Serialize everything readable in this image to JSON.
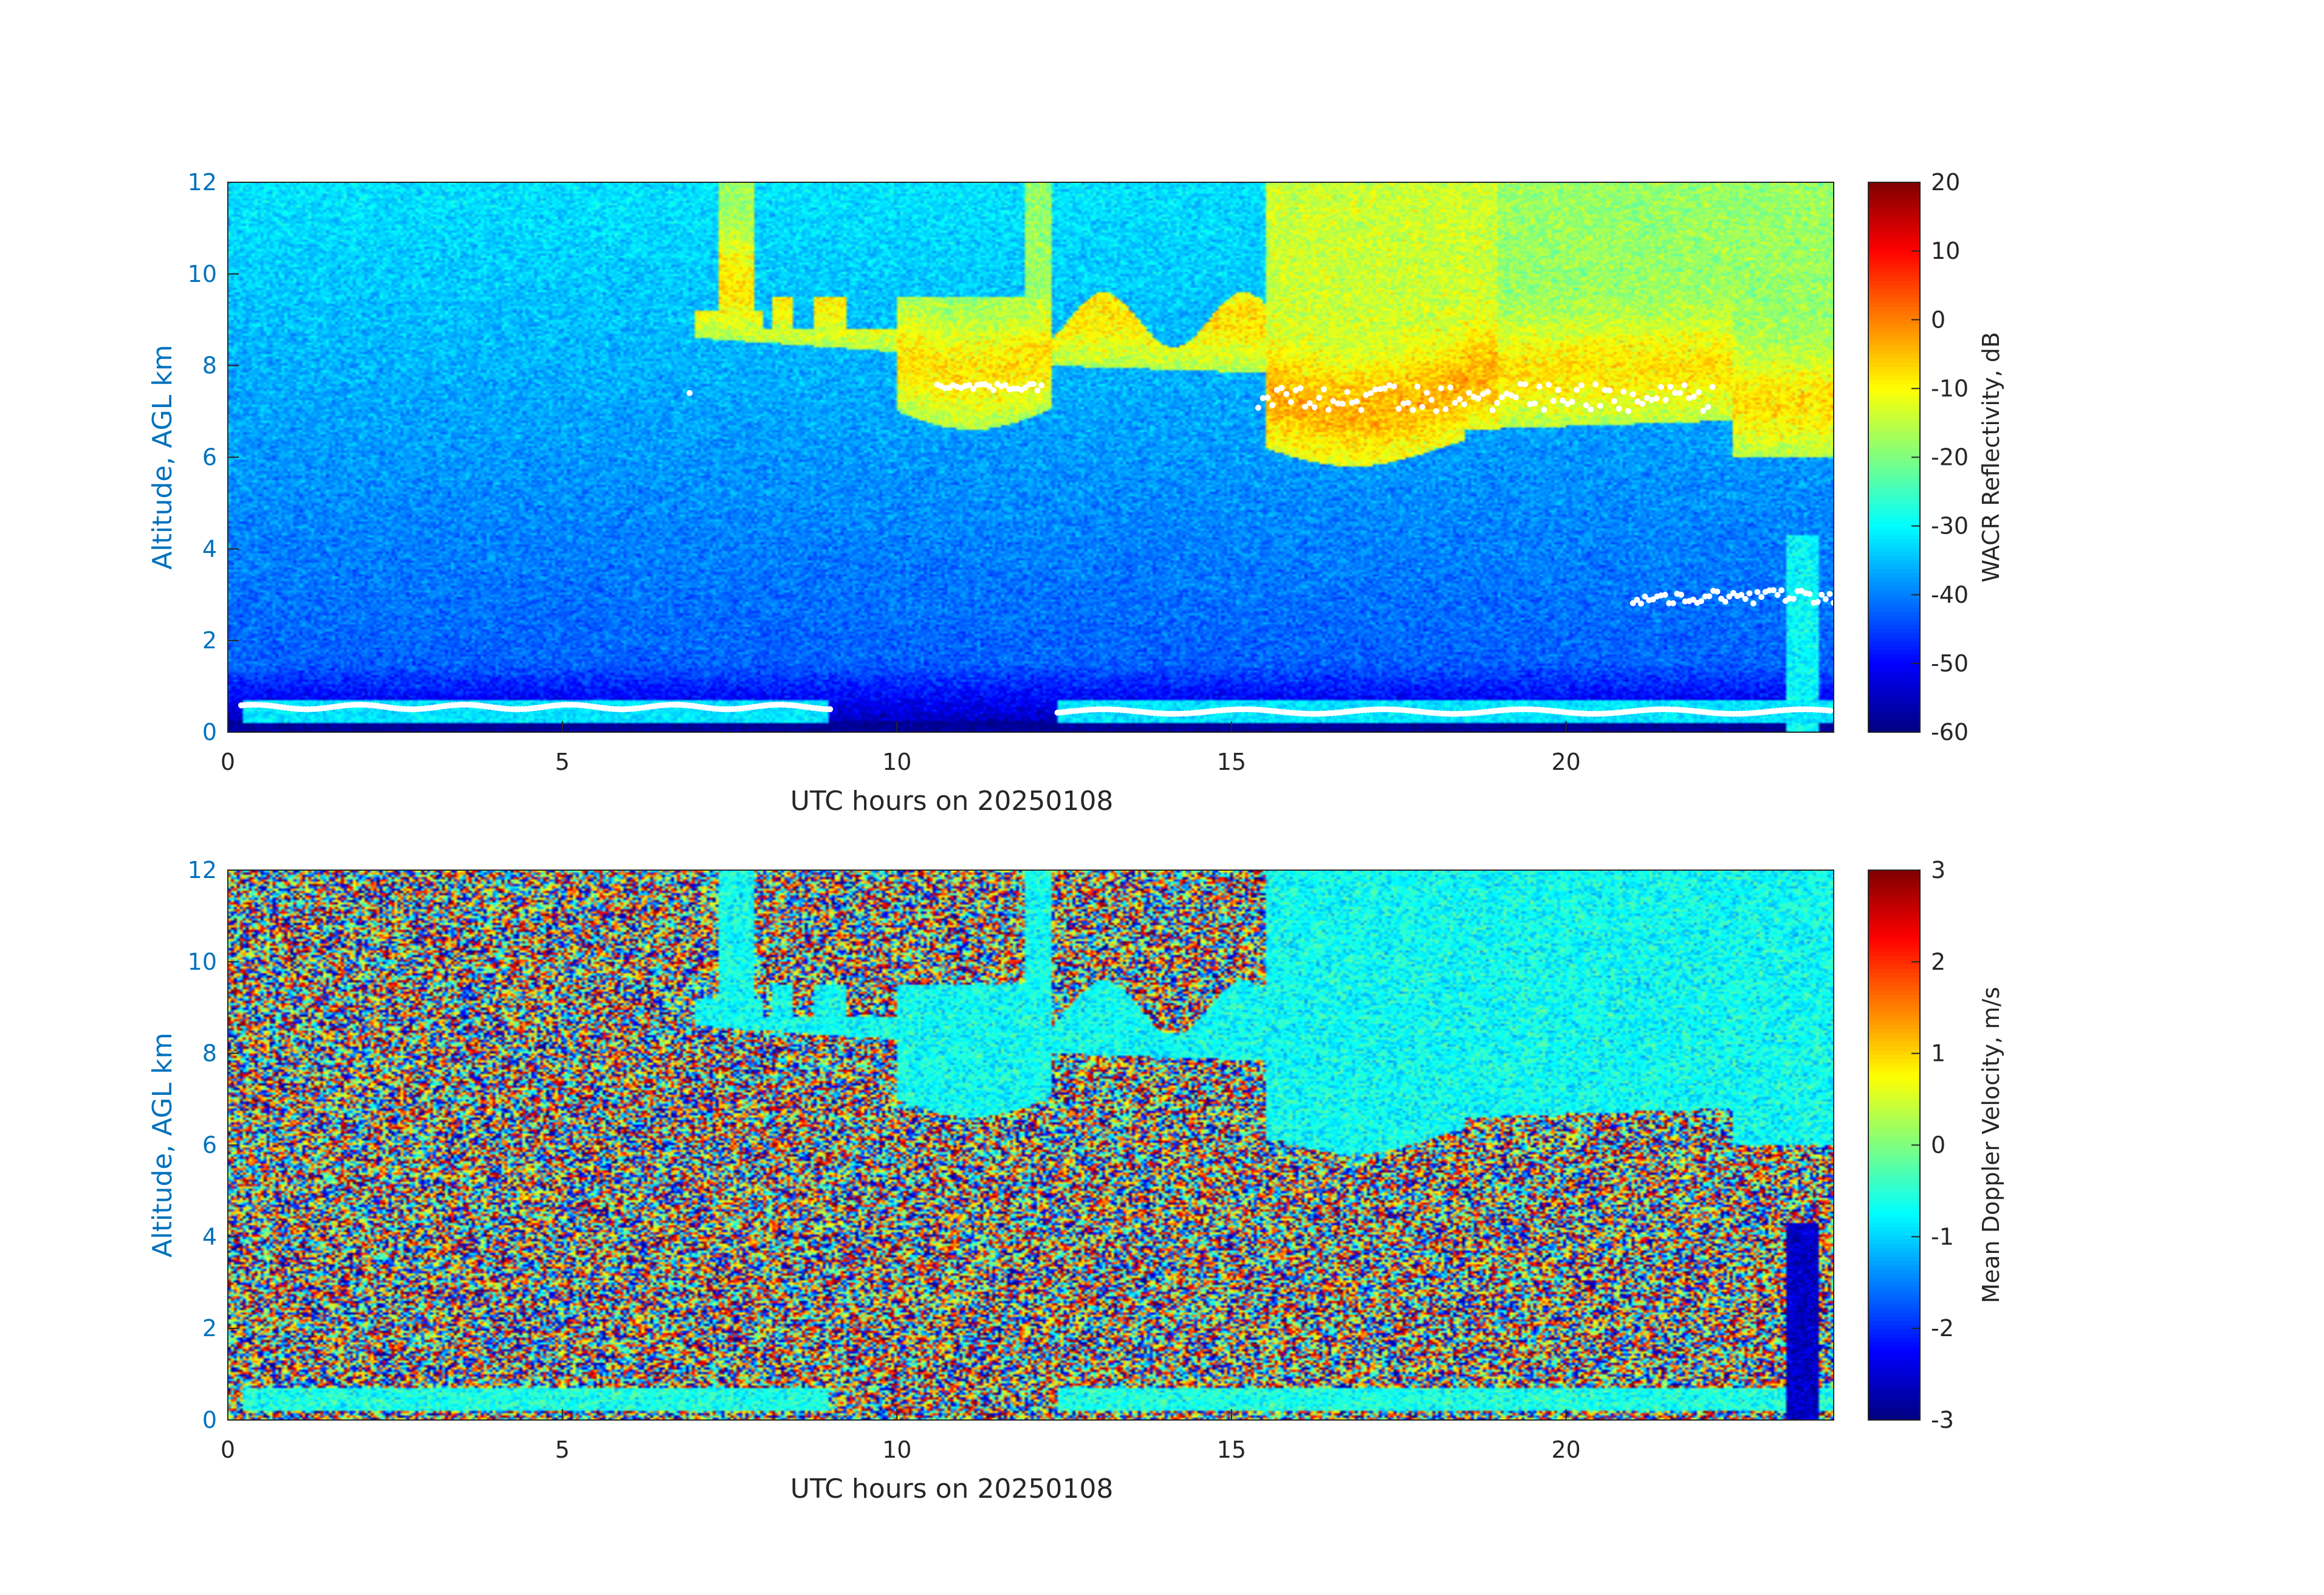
{
  "chart_data": [
    {
      "type": "heatmap",
      "field": "reflectivity",
      "xlabel": "UTC hours on 20250108",
      "ylabel": "Altitude, AGL km",
      "xlim": [
        0,
        24
      ],
      "ylim": [
        0,
        12
      ],
      "xticks": [
        0,
        5,
        10,
        15,
        20
      ],
      "yticks": [
        0,
        2,
        4,
        6,
        8,
        10,
        12
      ],
      "colorbar": {
        "label": "WACR Reflectivity, dB",
        "range": [
          -60,
          20
        ],
        "ticks": [
          20,
          10,
          0,
          -10,
          -20,
          -30,
          -40,
          -50,
          -60
        ],
        "colormap": "jet"
      },
      "marker_color": "#ffffff",
      "axis_label_color": "#0072bd"
    },
    {
      "type": "heatmap",
      "field": "velocity",
      "xlabel": "UTC hours on 20250108",
      "ylabel": "Altitude, AGL km",
      "xlim": [
        0,
        24
      ],
      "ylim": [
        0,
        12
      ],
      "xticks": [
        0,
        5,
        10,
        15,
        20
      ],
      "yticks": [
        0,
        2,
        4,
        6,
        8,
        10,
        12
      ],
      "colorbar": {
        "label": "Mean Doppler Velocity, m/s",
        "range": [
          -3,
          3
        ],
        "ticks": [
          3,
          2,
          1,
          0,
          -1,
          -2,
          -3
        ],
        "colormap": "jet"
      },
      "axis_label_color": "#0072bd"
    }
  ]
}
